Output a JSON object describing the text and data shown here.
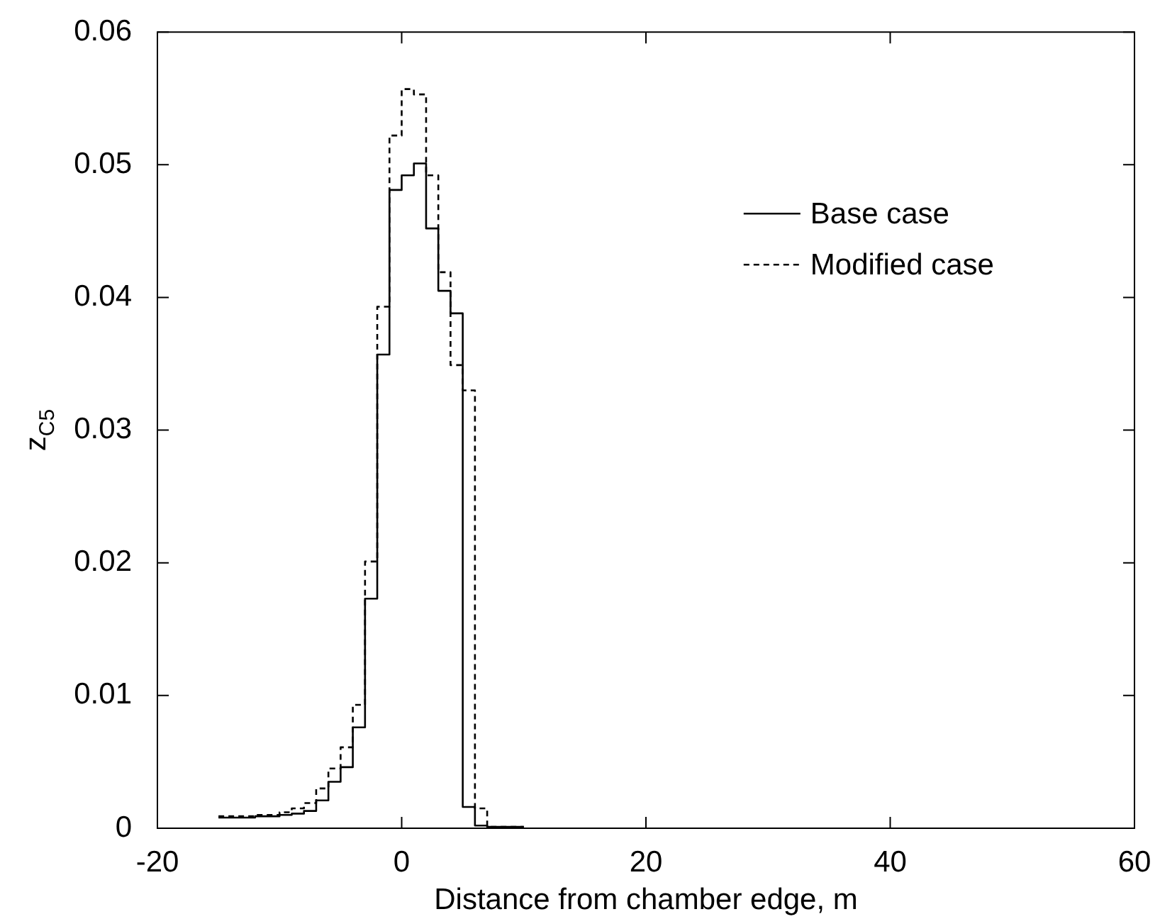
{
  "chart_data": {
    "type": "step",
    "xlabel": "Distance from chamber edge, m",
    "ylabel": "z$_{C5}$",
    "x": [
      -15,
      -14,
      -13,
      -12,
      -11,
      -10,
      -9,
      -8,
      -7,
      -6,
      -5,
      -4,
      -3,
      -2,
      -1,
      0,
      1,
      2,
      3,
      4,
      5,
      6,
      7,
      8,
      9,
      10
    ],
    "series": [
      {
        "name": "Base case",
        "color": "#000000",
        "line_style": "solid",
        "values": [
          0.0008,
          0.0008,
          0.0008,
          0.0009,
          0.0009,
          0.001,
          0.0011,
          0.0013,
          0.0021,
          0.0035,
          0.0046,
          0.0076,
          0.0173,
          0.0357,
          0.0481,
          0.0492,
          0.0501,
          0.0452,
          0.0405,
          0.0388,
          0.0016,
          0.0002,
          0.0001,
          0.0001,
          0.0001,
          0.0001
        ]
      },
      {
        "name": "Modified case",
        "color": "#000000",
        "line_style": "dashed",
        "values": [
          0.0009,
          0.0009,
          0.0009,
          0.001,
          0.001,
          0.0012,
          0.0015,
          0.0019,
          0.003,
          0.0045,
          0.0061,
          0.0093,
          0.0201,
          0.0393,
          0.0522,
          0.0557,
          0.0553,
          0.0492,
          0.0419,
          0.0349,
          0.033,
          0.0015,
          0.0001,
          0.0001,
          0.0001,
          0.0001
        ]
      }
    ],
    "xlim": [
      -20,
      60
    ],
    "xticks": [
      -20,
      0,
      20,
      40,
      60
    ],
    "ylim": [
      0,
      0.06
    ],
    "yticks": [
      0,
      0.01,
      0.02,
      0.03,
      0.04,
      0.05,
      0.06
    ],
    "grid": false,
    "legend": "top right"
  }
}
